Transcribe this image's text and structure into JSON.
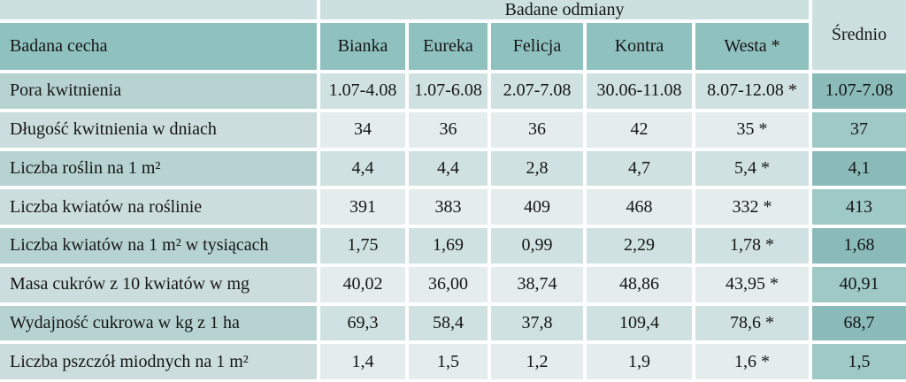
{
  "header": {
    "corner": "",
    "group": "Badane odmiany",
    "mean": "Średnio",
    "feature": "Badana cecha",
    "varieties": [
      "Bianka",
      "Eureka",
      "Felicja",
      "Kontra",
      "Westa *"
    ]
  },
  "rows": [
    {
      "label": "Pora kwitnienia",
      "values": [
        "1.07-4.08",
        "1.07-6.08",
        "2.07-7.08",
        "30.06-11.08",
        "8.07-12.08 *",
        "1.07-7.08"
      ]
    },
    {
      "label": "Długość kwitnienia w dniach",
      "values": [
        "34",
        "36",
        "36",
        "42",
        "35 *",
        "37"
      ]
    },
    {
      "label": "Liczba roślin na 1 m²",
      "values": [
        "4,4",
        "4,4",
        "2,8",
        "4,7",
        "5,4 *",
        "4,1"
      ]
    },
    {
      "label": "Liczba kwiatów na roślinie",
      "values": [
        "391",
        "383",
        "409",
        "468",
        "332 *",
        "413"
      ]
    },
    {
      "label": "Liczba kwiatów na 1 m² w tysiącach",
      "values": [
        "1,75",
        "1,69",
        "0,99",
        "2,29",
        "1,78 *",
        "1,68"
      ]
    },
    {
      "label": "Masa cukrów z 10 kwiatów w mg",
      "values": [
        "40,02",
        "36,00",
        "38,74",
        "48,86",
        "43,95 *",
        "40,91"
      ]
    },
    {
      "label": "Wydajność cukrowa w kg z 1 ha",
      "values": [
        "69,3",
        "58,4",
        "37,8",
        "109,4",
        "78,6 *",
        "68,7"
      ]
    },
    {
      "label": "Liczba pszczół miodnych na 1 m²",
      "values": [
        "1,4",
        "1,5",
        "1,2",
        "1,9",
        "1,6 *",
        "1,5"
      ]
    }
  ],
  "colors": {
    "header_pale": "#cde0e0",
    "header_dark": "#8fc1bf",
    "label_odd": "#b6d3d1",
    "label_even": "#cbdedd",
    "value_odd": "#cfe1e0",
    "value_even": "#e4edec",
    "mean_odd": "#8abbb9",
    "mean_even": "#9ec9c6",
    "separator": "#ffffff",
    "text": "#161616"
  }
}
